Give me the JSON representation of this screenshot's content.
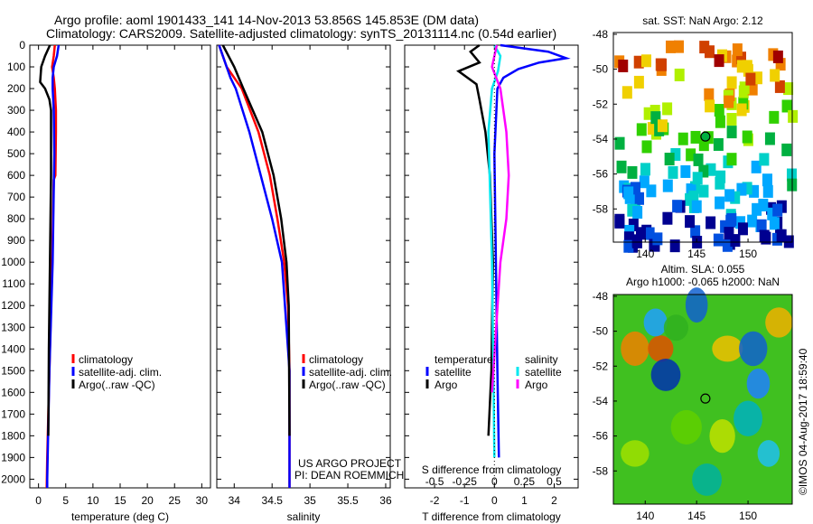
{
  "title": {
    "line1": "Argo profile: aoml 1901433_141 14-Nov-2013 53.856S 145.853E (DM data)",
    "line2": "Climatology: CARS2009. Satellite-adjusted climatology: synTS_20131114.nc (0.54d earlier)"
  },
  "credit": "©IMOS 04-Aug-2017 18:59:40",
  "project": {
    "line1": "US ARGO PROJECT",
    "line2": "PI: DEAN ROEMMICH"
  },
  "colors": {
    "climatology": "#ff0000",
    "satellite": "#0000ff",
    "argo": "#000000",
    "s_satellite": "#00e8f0",
    "s_argo": "#ff00ff"
  },
  "chart_data": [
    {
      "type": "line",
      "xlabel": "temperature (deg C)",
      "xlim": [
        -1.6,
        31.6
      ],
      "ylim": [
        0,
        2040
      ],
      "xticks": [
        0,
        5,
        10,
        15,
        20,
        25,
        30
      ],
      "yticks": [
        0,
        100,
        200,
        300,
        400,
        500,
        600,
        700,
        800,
        900,
        1000,
        1100,
        1200,
        1300,
        1400,
        1500,
        1600,
        1700,
        1800,
        1900,
        2000
      ],
      "legend": [
        "climatology",
        "satellite-adj. clim.",
        "Argo(..raw -QC)"
      ],
      "series": [
        {
          "name": "climatology",
          "color": "#ff0000",
          "depth": [
            0,
            50,
            100,
            150,
            200,
            300,
            400,
            600,
            620,
            1000,
            1500,
            1900,
            2040
          ],
          "values": [
            3.0,
            2.8,
            2.5,
            2.8,
            3.0,
            3.2,
            3.2,
            3.1,
            2.8,
            2.5,
            2.0,
            1.6,
            1.5
          ]
        },
        {
          "name": "satellite-adj. clim.",
          "color": "#0000ff",
          "depth": [
            0,
            50,
            100,
            150,
            200,
            300,
            500,
            1000,
            1500,
            2000,
            2040
          ],
          "values": [
            3.7,
            3.4,
            2.8,
            2.6,
            2.6,
            2.8,
            2.9,
            2.6,
            2.0,
            1.6,
            1.6
          ]
        },
        {
          "name": "Argo",
          "color": "#000000",
          "depth": [
            0,
            50,
            100,
            170,
            200,
            250,
            300,
            600,
            1000,
            1400,
            1800
          ],
          "values": [
            2.1,
            1.2,
            0.5,
            0.3,
            1.2,
            2.0,
            2.3,
            2.3,
            2.1,
            1.9,
            1.8
          ]
        }
      ]
    },
    {
      "type": "line",
      "xlabel": "salinity",
      "xlim": [
        33.77,
        36.06
      ],
      "ylim": [
        0,
        2040
      ],
      "xticks": [
        34,
        34.5,
        35,
        35.5,
        36
      ],
      "legend": [
        "climatology",
        "satellite-adj. clim.",
        "Argo(..raw -QC)"
      ],
      "series": [
        {
          "name": "climatology",
          "color": "#ff0000",
          "depth": [
            0,
            100,
            200,
            400,
            600,
            800,
            1000,
            1200,
            1500,
            2040
          ],
          "values": [
            33.8,
            33.9,
            34.1,
            34.32,
            34.47,
            34.57,
            34.66,
            34.71,
            34.73,
            34.73
          ]
        },
        {
          "name": "satellite-adj. clim.",
          "color": "#0000ff",
          "depth": [
            0,
            150,
            200,
            400,
            600,
            800,
            1000,
            1500,
            2040
          ],
          "values": [
            33.8,
            33.95,
            34.02,
            34.2,
            34.35,
            34.5,
            34.63,
            34.73,
            34.73
          ]
        },
        {
          "name": "Argo",
          "color": "#000000",
          "depth": [
            0,
            100,
            200,
            400,
            600,
            800,
            1000,
            1200,
            1800
          ],
          "values": [
            33.85,
            34.0,
            34.12,
            34.37,
            34.52,
            34.62,
            34.69,
            34.72,
            34.73
          ]
        }
      ]
    },
    {
      "type": "line",
      "xlabel": "T difference from climatology",
      "x2label": "S difference from climatology",
      "xlim": [
        -3.0,
        2.8
      ],
      "ylim": [
        0,
        2040
      ],
      "xticks": [
        -2,
        -1,
        0,
        1,
        2
      ],
      "x2ticks": [
        -0.5,
        -0.25,
        0,
        0.25,
        0.5
      ],
      "legend": {
        "temperature": "temperature",
        "salinity": "salinity",
        "t_sat": "satellite",
        "t_argo": "Argo",
        "s_sat": "satellite",
        "s_argo": "Argo"
      },
      "series": [
        {
          "name": "T satellite",
          "color": "#0000ff",
          "units": "T",
          "depth": [
            0,
            30,
            60,
            80,
            110,
            150,
            200,
            500,
            1000,
            1500,
            1900
          ],
          "values": [
            0.2,
            1.8,
            2.4,
            1.5,
            0.8,
            0.3,
            0.1,
            0.0,
            0.05,
            0.1,
            0.15
          ]
        },
        {
          "name": "T Argo",
          "color": "#000000",
          "units": "T",
          "depth": [
            0,
            30,
            80,
            120,
            180,
            250,
            400,
            600,
            1000,
            1500,
            1800
          ],
          "values": [
            -0.5,
            -0.8,
            -0.5,
            -1.2,
            -0.6,
            -0.5,
            -0.3,
            -0.15,
            -0.05,
            -0.1,
            -0.2
          ]
        },
        {
          "name": "S satellite",
          "color": "#00e8f0",
          "units": "S",
          "depth": [
            0,
            50,
            120,
            200,
            400,
            1000,
            1900
          ],
          "values": [
            0.0,
            0.05,
            0.03,
            -0.02,
            -0.05,
            -0.02,
            0.0
          ]
        },
        {
          "name": "S Argo",
          "color": "#ff00ff",
          "units": "S",
          "depth": [
            0,
            100,
            200,
            400,
            600,
            800,
            1000,
            1600
          ],
          "values": [
            0.02,
            -0.02,
            0.05,
            0.1,
            0.12,
            0.1,
            0.05,
            -0.02
          ]
        }
      ]
    },
    {
      "type": "heatmap",
      "title": "sat. SST: NaN Argo: 2.12",
      "xlim": [
        136.9,
        154.3
      ],
      "ylim": [
        -59.9,
        -47.9
      ],
      "xticks": [
        140,
        145,
        150
      ],
      "yticks": [
        -48,
        -50,
        -52,
        -54,
        -56,
        -58
      ],
      "marker": {
        "lon": 145.853,
        "lat": -53.856
      }
    },
    {
      "type": "heatmap",
      "title": "Altim. SLA: 0.055",
      "subtitle": "Argo h1000: -0.065 h2000: NaN",
      "xlim": [
        136.9,
        154.3
      ],
      "ylim": [
        -59.9,
        -47.9
      ],
      "xticks": [
        140,
        145,
        150
      ],
      "yticks": [
        -48,
        -50,
        -52,
        -54,
        -56,
        -58
      ],
      "marker": {
        "lon": 145.853,
        "lat": -53.856
      }
    }
  ]
}
